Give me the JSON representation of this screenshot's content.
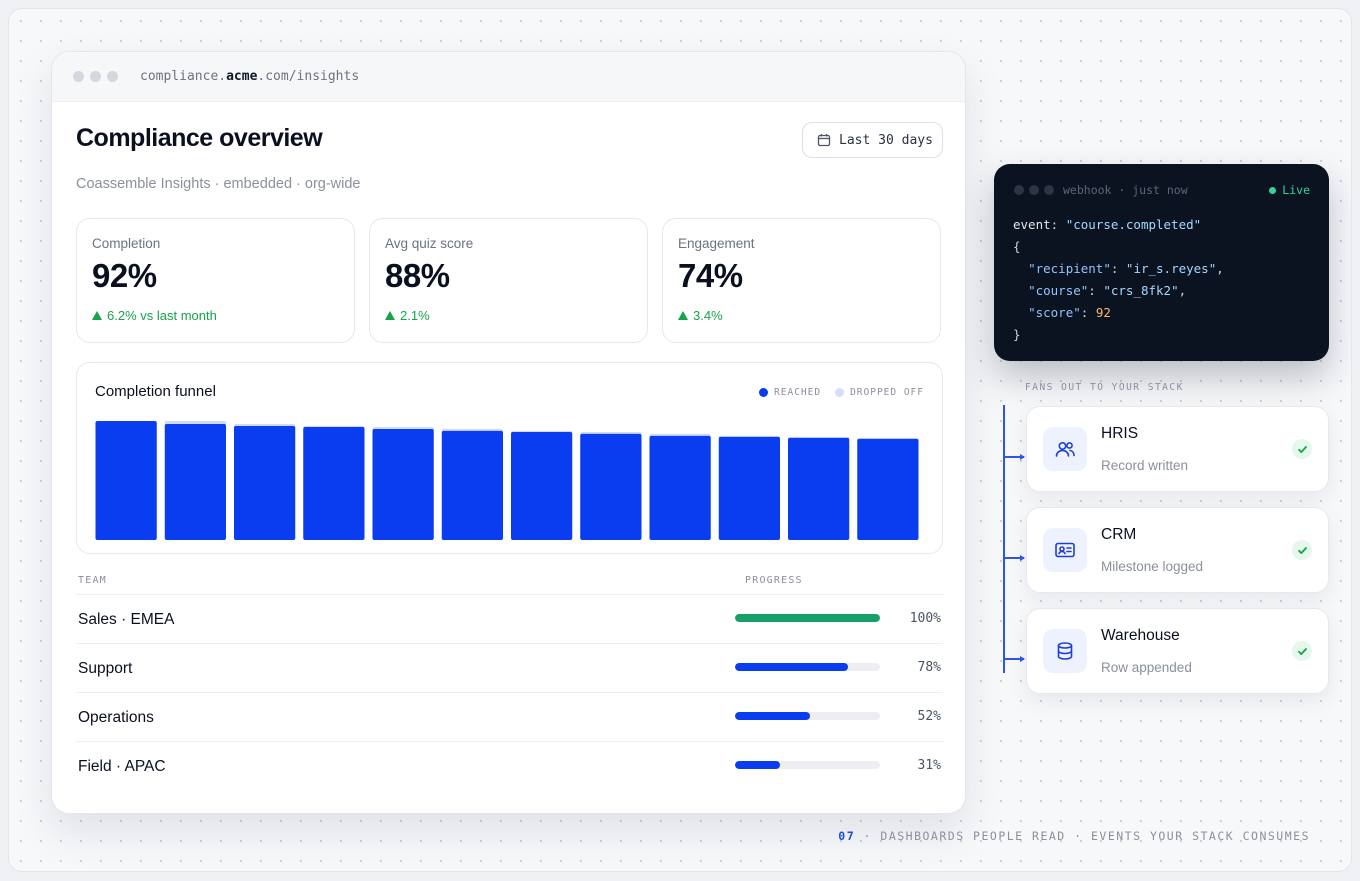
{
  "browser": {
    "url_prefix": "compliance.",
    "url_domain": "acme",
    "url_suffix": ".com/insights"
  },
  "header": {
    "title": "Compliance overview",
    "subtitle": "Coassemble Insights · embedded · org-wide",
    "date_range": "Last 30 days"
  },
  "kpis": [
    {
      "label": "Completion",
      "value": "92%",
      "delta": "6.2% vs last month"
    },
    {
      "label": "Avg quiz score",
      "value": "88%",
      "delta": "2.1%"
    },
    {
      "label": "Engagement",
      "value": "74%",
      "delta": "3.4%"
    }
  ],
  "funnel": {
    "title": "Completion funnel",
    "legend_reached": "REACHED",
    "legend_dropped": "DROPPED OFF"
  },
  "chart_data": {
    "type": "bar",
    "title": "Completion funnel",
    "series": [
      {
        "name": "REACHED",
        "values": [
          100,
          97.5,
          95.8,
          95,
          93.3,
          91.7,
          90.8,
          89.2,
          87.5,
          86.7,
          85.8,
          85
        ]
      },
      {
        "name": "DROPPED OFF",
        "values": [
          0,
          2.5,
          1.7,
          0.8,
          1.7,
          1.6,
          0.9,
          1.6,
          1.7,
          0.8,
          0.9,
          0.8
        ]
      }
    ],
    "stacked": true,
    "ylim": [
      0,
      100
    ],
    "grid": false,
    "legend": "top-right",
    "colors": {
      "reached": "#0a3cf0",
      "dropped": "#cfdaf7"
    }
  },
  "table": {
    "col_team": "TEAM",
    "col_progress": "PROGRESS",
    "rows": [
      {
        "team": "Sales · EMEA",
        "progress": 100,
        "label": "100%",
        "color": "#16a065"
      },
      {
        "team": "Support",
        "progress": 78,
        "label": "78%",
        "color": "#0a3cf0"
      },
      {
        "team": "Operations",
        "progress": 52,
        "label": "52%",
        "color": "#0a3cf0"
      },
      {
        "team": "Field · APAC",
        "progress": 31,
        "label": "31%",
        "color": "#0a3cf0"
      }
    ]
  },
  "webhook": {
    "title": "webhook · just now",
    "status": "Live",
    "event_key": "event",
    "event_value": "\"course.completed\"",
    "fields": [
      {
        "key": "\"recipient\"",
        "value": "\"ir_s.reyes\"",
        "type": "string"
      },
      {
        "key": "\"course\"",
        "value": "\"crs_8fk2\"",
        "type": "string"
      },
      {
        "key": "\"score\"",
        "value": "92",
        "type": "number"
      }
    ]
  },
  "fanout": {
    "label": "FANS OUT TO YOUR STACK",
    "destinations": [
      {
        "name": "HRIS",
        "status": "Record written",
        "icon": "users-icon"
      },
      {
        "name": "CRM",
        "status": "Milestone logged",
        "icon": "id-card-icon"
      },
      {
        "name": "Warehouse",
        "status": "Row appended",
        "icon": "database-icon"
      }
    ]
  },
  "footer": {
    "number": "07",
    "text": " · DASHBOARDS PEOPLE READ · EVENTS YOUR STACK CONSUMES"
  }
}
